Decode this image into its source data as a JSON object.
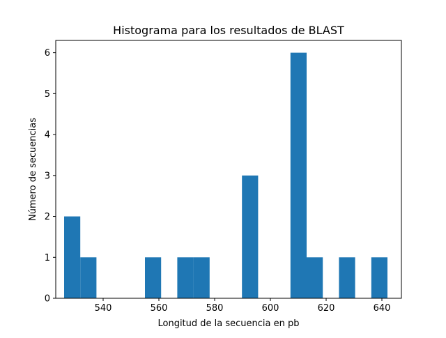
{
  "chart_data": {
    "type": "bar",
    "title": "Histograma para los resultados de BLAST",
    "xlabel": "Longitud de la secuencia en pb",
    "ylabel": "Número de secuencias",
    "xlim": [
      523,
      647
    ],
    "ylim": [
      0,
      6.3
    ],
    "grid": false,
    "bar_color": "#1f77b4",
    "bin_edges": [
      526.0,
      531.8,
      537.6,
      543.4,
      549.2,
      555.0,
      560.8,
      566.6,
      572.4,
      578.2,
      584.0,
      589.8,
      595.6,
      601.4,
      607.2,
      613.0,
      618.8,
      624.6,
      630.4,
      636.2,
      642.0
    ],
    "counts": [
      2,
      1,
      0,
      0,
      0,
      1,
      0,
      1,
      1,
      0,
      0,
      3,
      0,
      0,
      6,
      1,
      0,
      1,
      0,
      1
    ],
    "x_ticks": [
      540,
      560,
      580,
      600,
      620,
      640
    ],
    "x_tick_labels": [
      "540",
      "560",
      "580",
      "600",
      "620",
      "640"
    ],
    "y_ticks": [
      0,
      1,
      2,
      3,
      4,
      5,
      6
    ],
    "y_tick_labels": [
      "0",
      "1",
      "2",
      "3",
      "4",
      "5",
      "6"
    ]
  }
}
